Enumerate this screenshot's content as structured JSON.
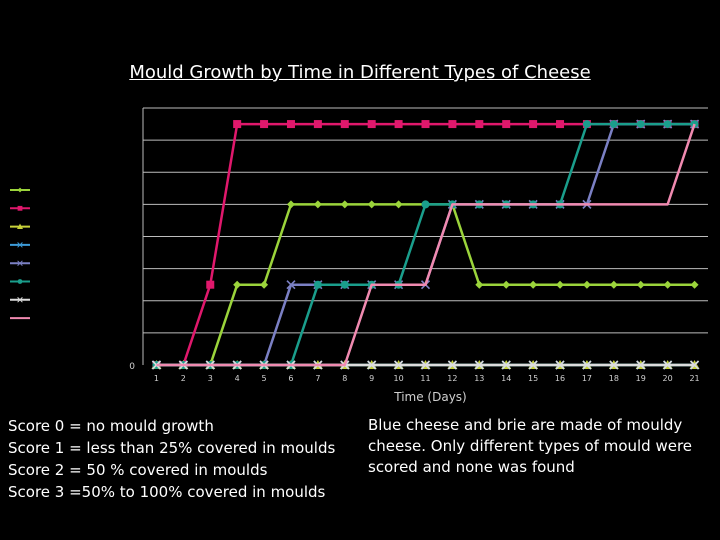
{
  "chart_data": {
    "type": "line",
    "title": "Mould Growth by Time in Different Types of Cheese",
    "xlabel": "Time (Days)",
    "ylabel": "",
    "x": [
      1,
      2,
      3,
      4,
      5,
      6,
      7,
      8,
      9,
      10,
      11,
      12,
      13,
      14,
      15,
      16,
      17,
      18,
      19,
      20,
      21
    ],
    "xticks": [
      "1",
      "2",
      "3",
      "4",
      "5",
      "6",
      "7",
      "8",
      "9",
      "10",
      "11",
      "12",
      "13",
      "14",
      "15",
      "16",
      "17",
      "18",
      "19",
      "20",
      "21"
    ],
    "ylim": [
      0,
      3.2
    ],
    "yticks": [
      "0"
    ],
    "grid": true,
    "legend": "left",
    "series": [
      {
        "color": "#9bd43b",
        "marker": "diamond",
        "values": [
          0,
          0,
          0,
          1,
          1,
          2,
          2,
          2,
          2,
          2,
          2,
          2,
          1,
          1,
          1,
          1,
          1,
          1,
          1,
          1,
          1
        ]
      },
      {
        "color": "#e0186c",
        "marker": "square",
        "values": [
          0,
          0,
          1,
          3,
          3,
          3,
          3,
          3,
          3,
          3,
          3,
          3,
          3,
          3,
          3,
          3,
          3,
          3,
          3,
          3,
          3
        ]
      },
      {
        "color": "#c8d23a",
        "marker": "triangle",
        "values": [
          0,
          0,
          0,
          0,
          0,
          0,
          0,
          0,
          0,
          0,
          0,
          0,
          0,
          0,
          0,
          0,
          0,
          0,
          0,
          0,
          0
        ]
      },
      {
        "color": "#3d9bd8",
        "marker": "x",
        "values": [
          0,
          0,
          0,
          0,
          0,
          0,
          0,
          0,
          0,
          0,
          0,
          0,
          0,
          0,
          0,
          0,
          0,
          0,
          0,
          0,
          0
        ]
      },
      {
        "color": "#7b80c4",
        "marker": "x",
        "values": [
          0,
          0,
          0,
          0,
          0,
          1,
          1,
          1,
          1,
          1,
          1,
          2,
          2,
          2,
          2,
          2,
          2,
          3,
          3,
          3,
          3
        ]
      },
      {
        "color": "#1a9e8c",
        "marker": "circle",
        "values": [
          0,
          0,
          0,
          0,
          0,
          0,
          1,
          1,
          1,
          1,
          2,
          2,
          2,
          2,
          2,
          2,
          3,
          3,
          3,
          3,
          3
        ]
      },
      {
        "color": "#dcdcdc",
        "marker": "x",
        "values": [
          0,
          0,
          0,
          0,
          0,
          0,
          0,
          0,
          0,
          0,
          0,
          0,
          0,
          0,
          0,
          0,
          0,
          0,
          0,
          0,
          0
        ]
      },
      {
        "color": "#f08ab0",
        "marker": "none",
        "values": [
          0,
          0,
          0,
          0,
          0,
          0,
          0,
          0,
          1,
          1,
          1,
          2,
          2,
          2,
          2,
          2,
          2,
          2,
          2,
          2,
          3
        ]
      }
    ]
  },
  "notes_left": [
    "Score 0 = no mould growth",
    "Score 1 = less than 25% covered in moulds",
    "Score 2 = 50 % covered in moulds",
    "Score 3 =50% to 100% covered in moulds"
  ],
  "notes_right": "Blue cheese and brie are made of mouldy cheese. Only different types of mould were scored and none was found"
}
